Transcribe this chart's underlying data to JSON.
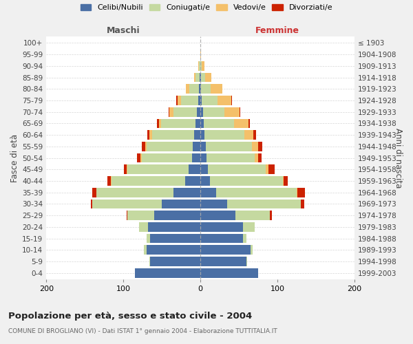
{
  "age_groups": [
    "0-4",
    "5-9",
    "10-14",
    "15-19",
    "20-24",
    "25-29",
    "30-34",
    "35-39",
    "40-44",
    "45-49",
    "50-54",
    "55-59",
    "60-64",
    "65-69",
    "70-74",
    "75-79",
    "80-84",
    "85-89",
    "90-94",
    "95-99",
    "100+"
  ],
  "birth_years": [
    "1999-2003",
    "1994-1998",
    "1989-1993",
    "1984-1988",
    "1979-1983",
    "1974-1978",
    "1969-1973",
    "1964-1968",
    "1959-1963",
    "1954-1958",
    "1949-1953",
    "1944-1948",
    "1939-1943",
    "1934-1938",
    "1929-1933",
    "1924-1928",
    "1919-1923",
    "1914-1918",
    "1909-1913",
    "1904-1908",
    "≤ 1903"
  ],
  "males": {
    "celibinubili": [
      85,
      65,
      70,
      65,
      68,
      60,
      50,
      35,
      20,
      15,
      11,
      10,
      8,
      6,
      5,
      3,
      2,
      1,
      0,
      0,
      0
    ],
    "coniugati": [
      0,
      1,
      3,
      5,
      12,
      35,
      90,
      100,
      95,
      80,
      65,
      60,
      55,
      45,
      30,
      22,
      12,
      5,
      2,
      0,
      0
    ],
    "vedovi": [
      0,
      0,
      0,
      0,
      0,
      0,
      0,
      0,
      1,
      1,
      2,
      2,
      3,
      3,
      5,
      5,
      5,
      2,
      1,
      0,
      0
    ],
    "divorziati": [
      0,
      0,
      0,
      0,
      0,
      1,
      2,
      5,
      5,
      3,
      4,
      4,
      3,
      2,
      1,
      1,
      0,
      0,
      0,
      0,
      0
    ]
  },
  "females": {
    "celibinubili": [
      75,
      60,
      65,
      55,
      55,
      45,
      35,
      20,
      12,
      10,
      8,
      7,
      5,
      4,
      3,
      2,
      1,
      1,
      0,
      0,
      0
    ],
    "coniugate": [
      0,
      1,
      3,
      5,
      15,
      45,
      95,
      105,
      95,
      75,
      62,
      60,
      52,
      40,
      28,
      20,
      12,
      5,
      2,
      0,
      0
    ],
    "vedove": [
      0,
      0,
      0,
      0,
      0,
      0,
      0,
      1,
      1,
      3,
      5,
      8,
      12,
      18,
      20,
      18,
      15,
      8,
      3,
      1,
      0
    ],
    "divorziate": [
      0,
      0,
      0,
      0,
      0,
      3,
      5,
      10,
      5,
      8,
      4,
      5,
      3,
      2,
      1,
      1,
      0,
      0,
      0,
      0,
      0
    ]
  },
  "colors": {
    "celibinubili": "#4a6fa5",
    "coniugati": "#c5d9a0",
    "vedovi": "#f4c06a",
    "divorziati": "#cc2200"
  },
  "xlim": 200,
  "title": "Popolazione per età, sesso e stato civile - 2004",
  "subtitle": "COMUNE DI BROGLIANO (VI) - Dati ISTAT 1° gennaio 2004 - Elaborazione TUTTITALIA.IT",
  "ylabel_left": "Fasce di età",
  "ylabel_right": "Anni di nascita",
  "xlabel_left": "Maschi",
  "xlabel_right": "Femmine",
  "legend_labels": [
    "Celibi/Nubili",
    "Coniugati/e",
    "Vedovi/e",
    "Divorziati/e"
  ],
  "bg_color": "#f0f0f0",
  "plot_bg": "#ffffff"
}
